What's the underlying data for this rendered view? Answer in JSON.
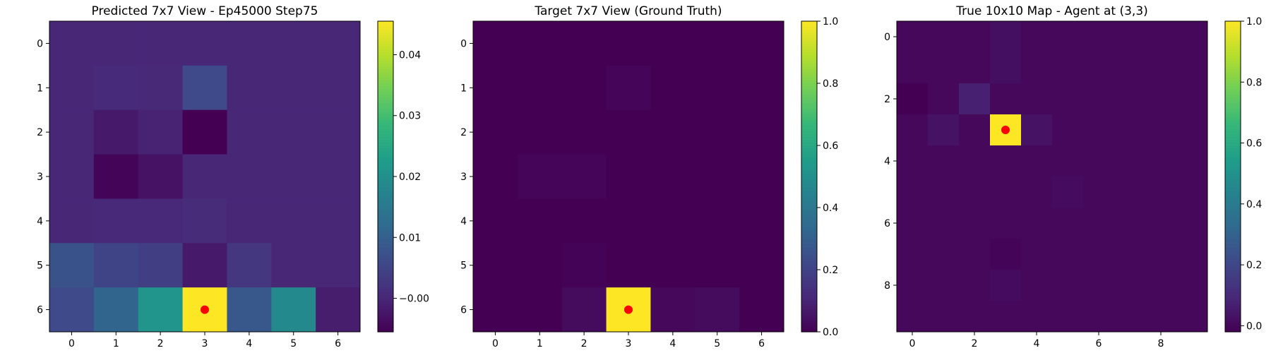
{
  "chart_data": [
    {
      "type": "heatmap",
      "title": "Predicted 7x7 View - Ep45000 Step75",
      "x_ticks": [
        0,
        1,
        2,
        3,
        4,
        5,
        6
      ],
      "y_ticks": [
        0,
        1,
        2,
        3,
        4,
        5,
        6
      ],
      "colormap": "viridis",
      "vmin": -0.0055,
      "vmax": 0.0455,
      "colorbar_ticks": [
        -0.0,
        0.01,
        0.02,
        0.03,
        0.04
      ],
      "colorbar_tick_labels": [
        "−0.00",
        "0.01",
        "0.02",
        "0.03",
        "0.04"
      ],
      "marker": {
        "x": 3,
        "y": 6,
        "color": "#ff0000"
      },
      "values": [
        [
          0.0,
          0.0,
          0.0,
          0.0,
          0.0,
          0.0,
          0.0
        ],
        [
          0.0,
          0.0005,
          0.0003,
          0.006,
          0.0,
          0.0,
          0.0
        ],
        [
          0.0,
          -0.002,
          -0.0005,
          -0.0055,
          0.0,
          0.0,
          0.0
        ],
        [
          0.0,
          -0.005,
          -0.003,
          0.0,
          0.0,
          0.0,
          0.0
        ],
        [
          0.0,
          0.0002,
          0.0002,
          0.0008,
          0.0,
          0.0,
          0.0
        ],
        [
          0.0075,
          0.005,
          0.004,
          -0.002,
          0.0025,
          0.0,
          0.0
        ],
        [
          0.006,
          0.011,
          0.021,
          0.0455,
          0.0085,
          0.0185,
          -0.0015
        ]
      ]
    },
    {
      "type": "heatmap",
      "title": "Target 7x7 View (Ground Truth)",
      "x_ticks": [
        0,
        1,
        2,
        3,
        4,
        5,
        6
      ],
      "y_ticks": [
        0,
        1,
        2,
        3,
        4,
        5,
        6
      ],
      "colormap": "viridis",
      "vmin": 0,
      "vmax": 1,
      "colorbar_ticks": [
        0.0,
        0.2,
        0.4,
        0.6,
        0.8,
        1.0
      ],
      "colorbar_tick_labels": [
        "0.0",
        "0.2",
        "0.4",
        "0.6",
        "0.8",
        "1.0"
      ],
      "marker": {
        "x": 3,
        "y": 6,
        "color": "#ff0000"
      },
      "values": [
        [
          0,
          0,
          0,
          0,
          0,
          0,
          0
        ],
        [
          0,
          0,
          0,
          0.015,
          0,
          0,
          0
        ],
        [
          0,
          0,
          0,
          0,
          0,
          0,
          0
        ],
        [
          0,
          0.015,
          0.015,
          0,
          0,
          0,
          0
        ],
        [
          0,
          0,
          0,
          0,
          0,
          0,
          0
        ],
        [
          0,
          0,
          0.005,
          0,
          0,
          0,
          0
        ],
        [
          0,
          0,
          0.03,
          1.0,
          0.02,
          0.03,
          0
        ]
      ]
    },
    {
      "type": "heatmap",
      "title": "True 10x10 Map - Agent at (3,3)",
      "x_ticks": [
        0,
        2,
        4,
        6,
        8
      ],
      "y_ticks": [
        0,
        2,
        4,
        6,
        8
      ],
      "colormap": "viridis",
      "vmin": -0.02,
      "vmax": 1,
      "colorbar_ticks": [
        0.0,
        0.2,
        0.4,
        0.6,
        0.8,
        1.0
      ],
      "colorbar_tick_labels": [
        "0.0",
        "0.2",
        "0.4",
        "0.6",
        "0.8",
        "1.0"
      ],
      "marker": {
        "x": 3,
        "y": 3,
        "color": "#ff0000"
      },
      "values": [
        [
          0,
          0,
          0,
          0.02,
          0,
          0,
          0,
          0,
          0,
          0
        ],
        [
          0,
          0,
          0,
          0.02,
          0,
          0,
          0,
          0,
          0,
          0
        ],
        [
          -0.02,
          0,
          0.07,
          0,
          0,
          0,
          0,
          0,
          0,
          0
        ],
        [
          0,
          0.03,
          0,
          1.0,
          0.03,
          0,
          0,
          0,
          0,
          0
        ],
        [
          0,
          0,
          0,
          0,
          0,
          0,
          0,
          0,
          0,
          0
        ],
        [
          0,
          0,
          0,
          0,
          0,
          0.01,
          0,
          0,
          0,
          0
        ],
        [
          0,
          0,
          0,
          0,
          0,
          0,
          0,
          0,
          0,
          0
        ],
        [
          0,
          0,
          0,
          -0.01,
          0,
          0,
          0,
          0,
          0,
          0
        ],
        [
          0,
          0,
          0,
          0.01,
          0,
          0,
          0,
          0,
          0,
          0
        ],
        [
          0,
          0,
          0,
          0,
          0,
          0,
          0,
          0,
          0,
          0
        ]
      ]
    }
  ]
}
